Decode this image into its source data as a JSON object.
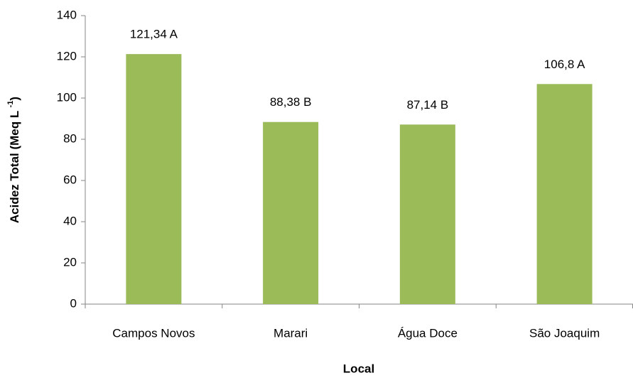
{
  "chart_data": {
    "type": "bar",
    "categories": [
      "Campos Novos",
      "Marari",
      "Água Doce",
      "São Joaquim"
    ],
    "values": [
      121.34,
      88.38,
      87.14,
      106.8
    ],
    "value_labels": [
      "121,34 A",
      "88,38 B",
      "87,14 B",
      "106,8 A"
    ],
    "color": "#9bbb59",
    "xlabel": "Local",
    "ylabel": [
      "Acidez Total (Meq L ",
      "-1",
      ")"
    ],
    "ylim": [
      0,
      140
    ],
    "yticks": [
      0,
      20,
      40,
      60,
      80,
      100,
      120,
      140
    ],
    "grid": false
  }
}
